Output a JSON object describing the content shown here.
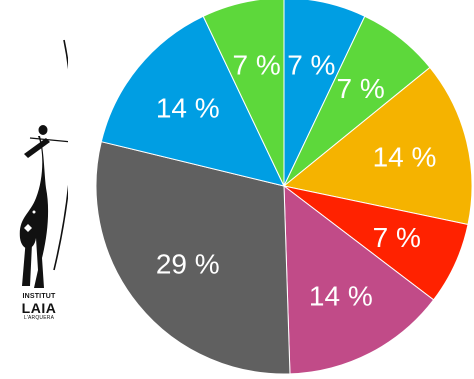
{
  "logo": {
    "line1": "INSTITUT",
    "line2": "LAIA",
    "line3": "L'ARQUERA"
  },
  "chart_data": {
    "type": "pie",
    "start_angle_deg": 0,
    "direction": "clockwise",
    "slices": [
      {
        "value": 7,
        "label": "7 %",
        "color": "#009ee3"
      },
      {
        "value": 7,
        "label": "7 %",
        "color": "#5dd83b"
      },
      {
        "value": 14,
        "label": "14 %",
        "color": "#f5b300"
      },
      {
        "value": 7,
        "label": "7 %",
        "color": "#ff2200"
      },
      {
        "value": 14,
        "label": "14 %",
        "color": "#c14b88"
      },
      {
        "value": 29,
        "label": "29 %",
        "color": "#606060"
      },
      {
        "value": 14,
        "label": "14 %",
        "color": "#009ee3"
      },
      {
        "value": 7,
        "label": "7 %",
        "color": "#5dd83b"
      }
    ]
  }
}
